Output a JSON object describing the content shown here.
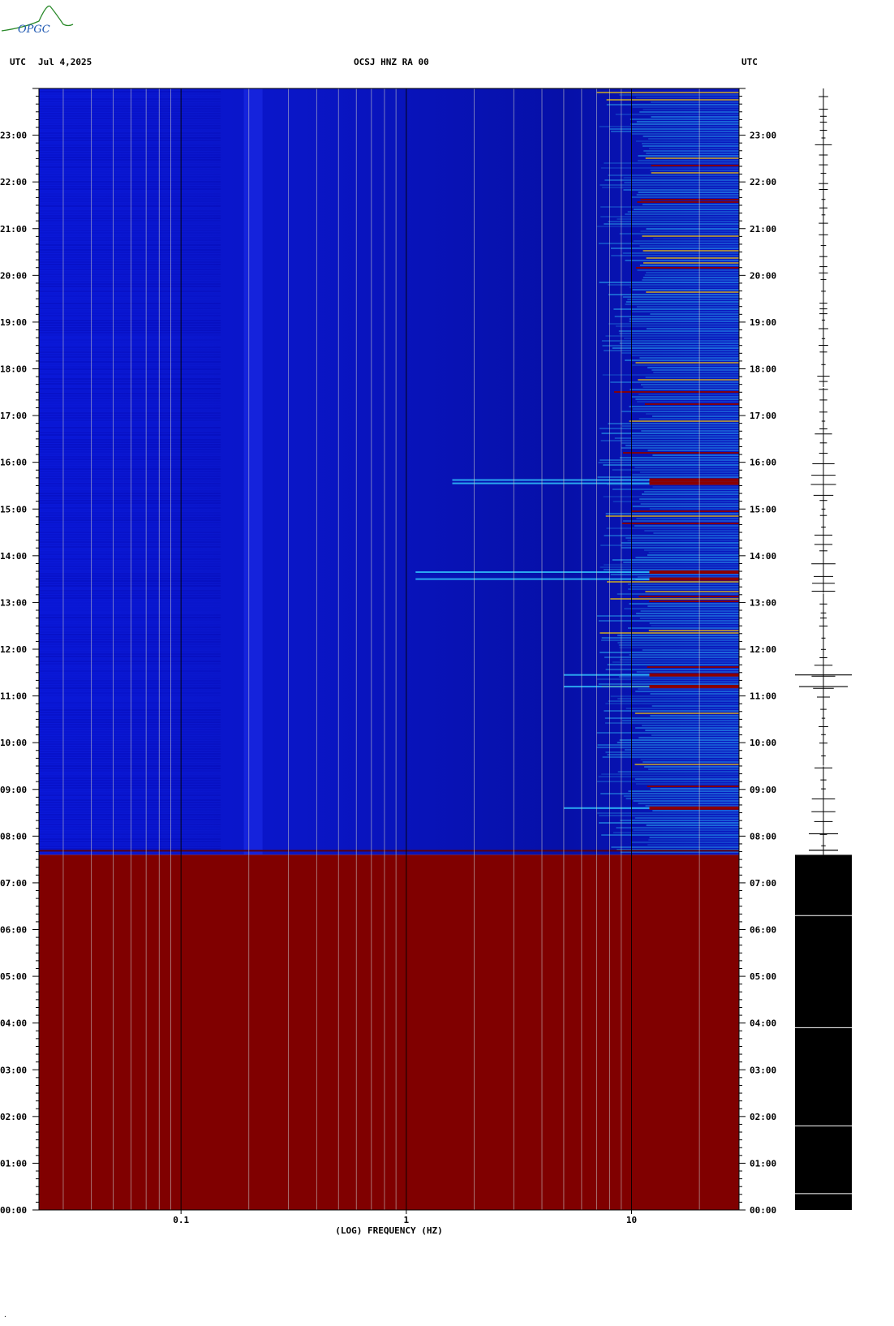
{
  "header": {
    "left_tz": "UTC",
    "date": "Jul 4,2025",
    "station": "OCSJ HNZ RA 00",
    "right_tz": "UTC"
  },
  "logo": {
    "text": "OPGC"
  },
  "colors": {
    "spectrogram_base": "#0a16c8",
    "spectrogram_deep": "#0410a0",
    "gap_fill": "#800000",
    "hot": "#8b0000",
    "warm": "#ffd000",
    "cyan": "#33ccff",
    "gridline": "#c8c8c8",
    "majorline": "#000000",
    "trace": "#000000"
  },
  "chart_data": {
    "type": "heatmap",
    "xlabel": "(LOG) FREQUENCY (HZ)",
    "x_scale": "log",
    "xlim": [
      0.0234,
      30
    ],
    "x_tick_labels": [
      "0.1",
      "1",
      "10"
    ],
    "x_ticks": [
      0.1,
      1,
      10
    ],
    "ylim_hours": [
      0,
      24
    ],
    "y_tick_labels": [
      "00:00",
      "01:00",
      "02:00",
      "03:00",
      "04:00",
      "05:00",
      "06:00",
      "07:00",
      "08:00",
      "09:00",
      "10:00",
      "11:00",
      "12:00",
      "13:00",
      "14:00",
      "15:00",
      "16:00",
      "17:00",
      "18:00",
      "19:00",
      "20:00",
      "21:00",
      "22:00",
      "23:00"
    ],
    "data_gap_hours": [
      0,
      7.6
    ],
    "strong_events_hours": [
      13.5,
      13.65,
      15.55,
      15.62,
      11.45,
      11.2,
      8.6
    ],
    "activity_start_hz": 7
  }
}
